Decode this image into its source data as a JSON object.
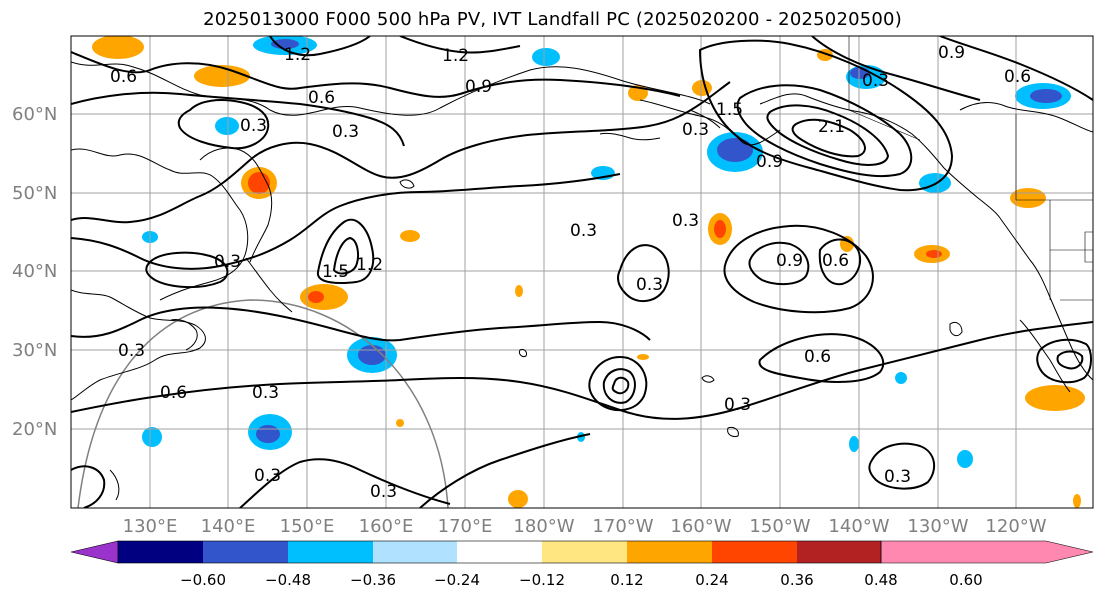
{
  "title": "2025013000 F000 500 hPa PV, IVT Landfall PC (2025020200 - 2025020500)",
  "map": {
    "lat_labels": [
      "60°N",
      "50°N",
      "40°N",
      "30°N",
      "20°N"
    ],
    "lon_labels": [
      "130°E",
      "140°E",
      "150°E",
      "160°E",
      "170°E",
      "180°W",
      "170°W",
      "160°W",
      "150°W",
      "140°W",
      "130°W",
      "120°W"
    ],
    "contour_labels": [
      "0.6",
      "1.2",
      "1.2",
      "0.6",
      "0.3",
      "0.3",
      "0.9",
      "0.9",
      "0.6",
      "0.3",
      "1.5",
      "2.1",
      "0.9",
      "0.3",
      "0.3",
      "0.3",
      "0.3",
      "1.2",
      "1.5",
      "0.9",
      "0.6",
      "0.3",
      "0.3",
      "0.6",
      "0.6",
      "0.3",
      "0.3",
      "0.3",
      "0.3",
      "0.3"
    ],
    "colors": {
      "coast": "#000000",
      "contour": "#000000",
      "grid": "#a0a0a0",
      "circle": "#808080"
    }
  },
  "colorbar": {
    "tick_labels": [
      "−0.60",
      "−0.48",
      "−0.36",
      "−0.24",
      "−0.12",
      "0.12",
      "0.24",
      "0.36",
      "0.48",
      "0.60"
    ],
    "colors": [
      "#9933cc",
      "#000080",
      "#3355cc",
      "#00bfff",
      "#b0e2ff",
      "#ffffff",
      "#ffe680",
      "#ffa500",
      "#ff4500",
      "#b22222",
      "#ff88b0"
    ]
  }
}
